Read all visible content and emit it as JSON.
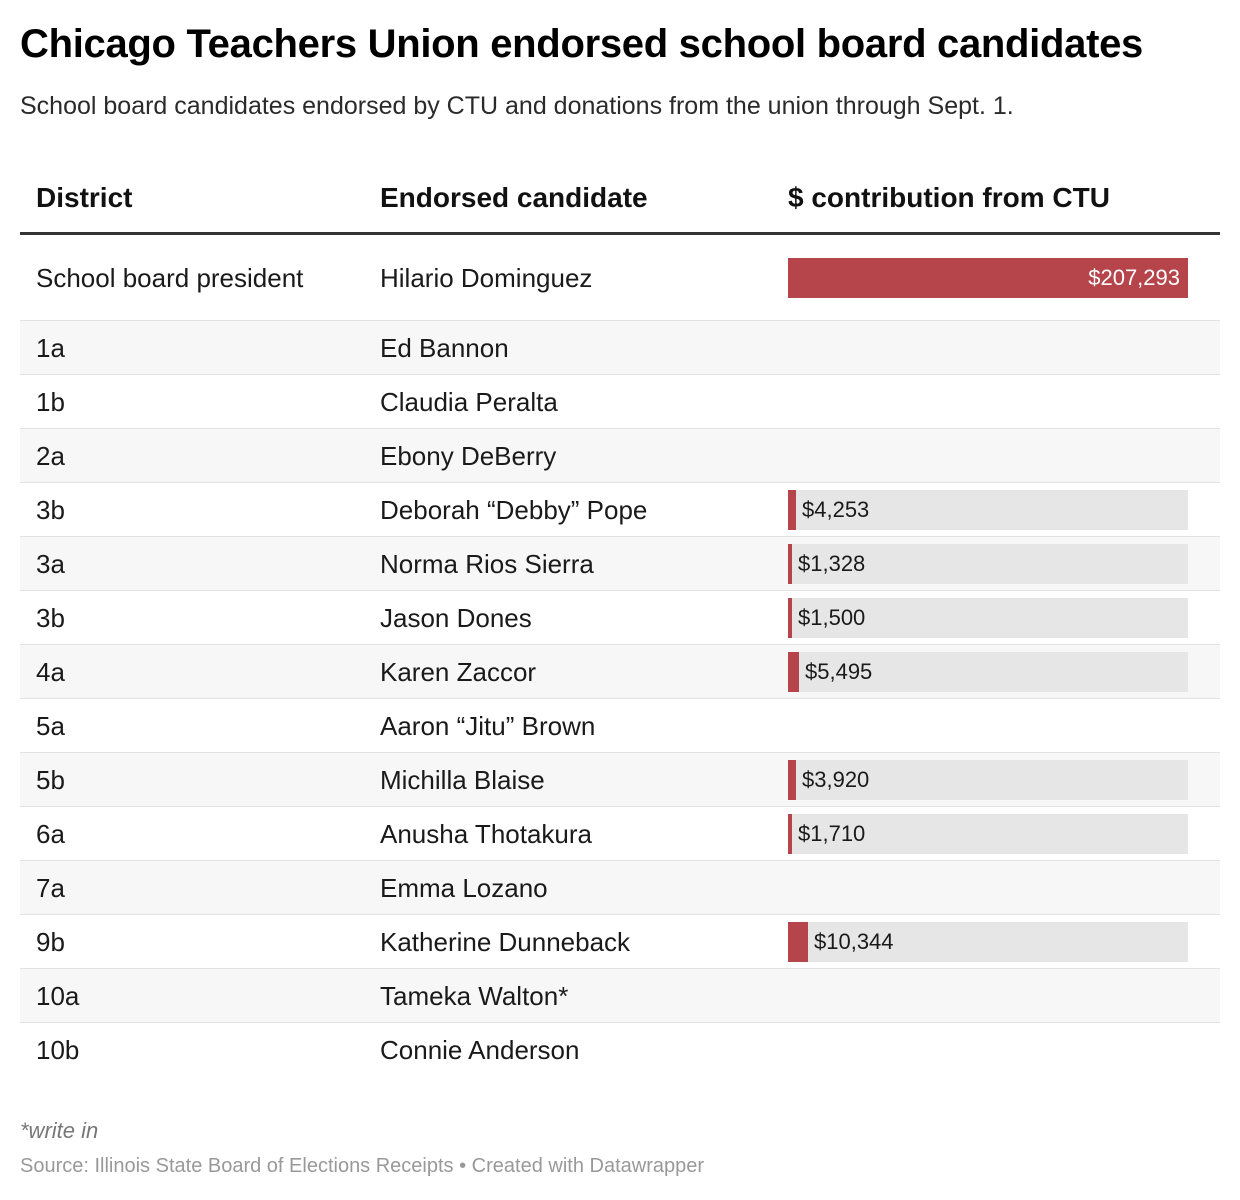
{
  "title": "Chicago Teachers Union endorsed school board candidates",
  "subtitle": "School board candidates endorsed by CTU and donations from the union through Sept. 1.",
  "headers": {
    "district": "District",
    "candidate": "Endorsed candidate",
    "contribution": "$ contribution from CTU"
  },
  "note": "*write in",
  "source": "Source: Illinois State Board of Elections Receipts • Created with Datawrapper",
  "colors": {
    "bar": "#b5444b",
    "track": "#e6e6e6",
    "alt_row": "#f7f7f7"
  },
  "chart_data": {
    "type": "table",
    "columns": [
      "District",
      "Endorsed candidate",
      "$ contribution from CTU"
    ],
    "max_value": 207293,
    "rows": [
      {
        "district": "School board president",
        "candidate": "Hilario Dominguez",
        "value": 207293,
        "label": "$207,293"
      },
      {
        "district": "1a",
        "candidate": "Ed Bannon",
        "value": null,
        "label": ""
      },
      {
        "district": "1b",
        "candidate": "Claudia Peralta",
        "value": null,
        "label": ""
      },
      {
        "district": "2a",
        "candidate": "Ebony DeBerry",
        "value": null,
        "label": ""
      },
      {
        "district": "3b",
        "candidate": "Deborah “Debby” Pope",
        "value": 4253,
        "label": "$4,253"
      },
      {
        "district": "3a",
        "candidate": "Norma Rios Sierra",
        "value": 1328,
        "label": "$1,328"
      },
      {
        "district": "3b",
        "candidate": "Jason Dones",
        "value": 1500,
        "label": "$1,500"
      },
      {
        "district": "4a",
        "candidate": "Karen Zaccor",
        "value": 5495,
        "label": "$5,495"
      },
      {
        "district": "5a",
        "candidate": "Aaron “Jitu” Brown",
        "value": null,
        "label": ""
      },
      {
        "district": "5b",
        "candidate": "Michilla Blaise",
        "value": 3920,
        "label": "$3,920"
      },
      {
        "district": "6a",
        "candidate": "Anusha Thotakura",
        "value": 1710,
        "label": "$1,710"
      },
      {
        "district": "7a",
        "candidate": "Emma Lozano",
        "value": null,
        "label": ""
      },
      {
        "district": "9b",
        "candidate": "Katherine Dunneback",
        "value": 10344,
        "label": "$10,344"
      },
      {
        "district": "10a",
        "candidate": "Tameka Walton*",
        "value": null,
        "label": ""
      },
      {
        "district": "10b",
        "candidate": "Connie Anderson",
        "value": null,
        "label": ""
      }
    ]
  }
}
